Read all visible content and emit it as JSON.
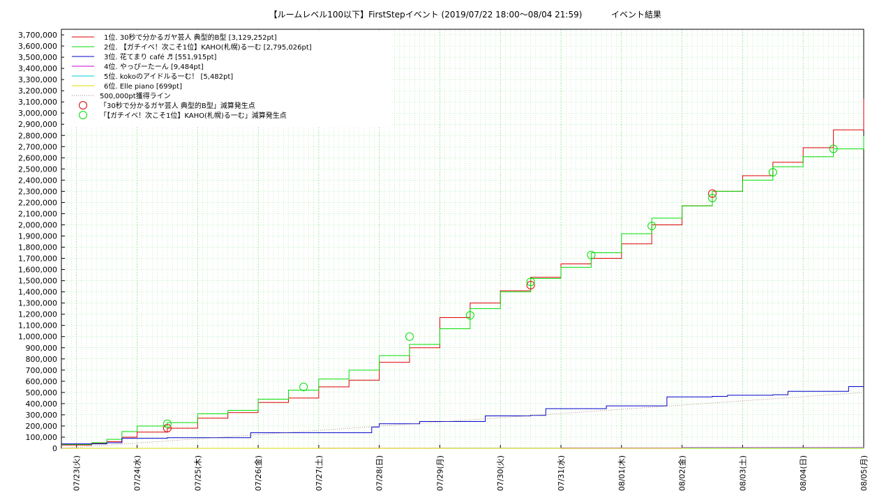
{
  "chart_data": {
    "type": "line",
    "title": "【ルームレベル100以下】FirstStepイベント (2019/07/22 18:00～08/04 21:59)",
    "subtitle": "イベント結果",
    "x_tick_labels": [
      "07/23(火)",
      "07/24(水)",
      "07/25(木)",
      "07/26(金)",
      "07/27(土)",
      "07/28(日)",
      "07/29(月)",
      "07/30(火)",
      "07/31(水)",
      "08/01(木)",
      "08/02(金)",
      "08/03(土)",
      "08/04(日)",
      "08/05(月)"
    ],
    "x_tick_dates": [
      "2019-07-23",
      "2019-07-24",
      "2019-07-25",
      "2019-07-26",
      "2019-07-27",
      "2019-07-28",
      "2019-07-29",
      "2019-07-30",
      "2019-07-31",
      "2019-08-01",
      "2019-08-02",
      "2019-08-03",
      "2019-08-04",
      "2019-08-05"
    ],
    "xlim": [
      "2019-07-22 18:00",
      "2019-08-05 00:00"
    ],
    "ylim": [
      0,
      3750000
    ],
    "y_ticks": [
      0,
      100000,
      200000,
      300000,
      400000,
      500000,
      600000,
      700000,
      800000,
      900000,
      1000000,
      1100000,
      1200000,
      1300000,
      1400000,
      1500000,
      1600000,
      1700000,
      1800000,
      1900000,
      2000000,
      2100000,
      2200000,
      2300000,
      2400000,
      2500000,
      2600000,
      2700000,
      2800000,
      2900000,
      3000000,
      3100000,
      3200000,
      3300000,
      3400000,
      3500000,
      3600000,
      3700000
    ],
    "grid": true,
    "legend_position": "top-left",
    "series": [
      {
        "name": "1位. 30秒で分かるガヤ芸人 典型的B型 [3,129,252pt]",
        "color": "#dd0000",
        "points": [
          [
            "2019-07-22 18:00",
            30000
          ],
          [
            "2019-07-23 06:00",
            45000
          ],
          [
            "2019-07-23 12:00",
            60000
          ],
          [
            "2019-07-23 18:00",
            100000
          ],
          [
            "2019-07-24 00:00",
            145000
          ],
          [
            "2019-07-24 12:00",
            180000
          ],
          [
            "2019-07-25 00:00",
            270000
          ],
          [
            "2019-07-25 12:00",
            320000
          ],
          [
            "2019-07-26 00:00",
            410000
          ],
          [
            "2019-07-26 12:00",
            450000
          ],
          [
            "2019-07-27 00:00",
            550000
          ],
          [
            "2019-07-27 12:00",
            610000
          ],
          [
            "2019-07-28 00:00",
            770000
          ],
          [
            "2019-07-28 12:00",
            900000
          ],
          [
            "2019-07-29 00:00",
            1170000
          ],
          [
            "2019-07-29 12:00",
            1300000
          ],
          [
            "2019-07-30 00:00",
            1410000
          ],
          [
            "2019-07-30 12:00",
            1530000
          ],
          [
            "2019-07-31 00:00",
            1650000
          ],
          [
            "2019-07-31 12:00",
            1700000
          ],
          [
            "2019-08-01 00:00",
            1830000
          ],
          [
            "2019-08-01 12:00",
            2000000
          ],
          [
            "2019-08-02 00:00",
            2170000
          ],
          [
            "2019-08-02 12:00",
            2300000
          ],
          [
            "2019-08-03 00:00",
            2440000
          ],
          [
            "2019-08-03 12:00",
            2560000
          ],
          [
            "2019-08-04 00:00",
            2690000
          ],
          [
            "2019-08-04 12:00",
            2850000
          ],
          [
            "2019-08-05 00:00",
            3129252
          ]
        ]
      },
      {
        "name": "2位. 【ガチイベ！次こそ1位】KAHO(札幌)る一む [2,795,026pt]",
        "color": "#00dd00",
        "points": [
          [
            "2019-07-22 18:00",
            35000
          ],
          [
            "2019-07-23 06:00",
            50000
          ],
          [
            "2019-07-23 12:00",
            80000
          ],
          [
            "2019-07-23 18:00",
            150000
          ],
          [
            "2019-07-24 00:00",
            200000
          ],
          [
            "2019-07-24 12:00",
            230000
          ],
          [
            "2019-07-25 00:00",
            310000
          ],
          [
            "2019-07-25 12:00",
            340000
          ],
          [
            "2019-07-26 00:00",
            440000
          ],
          [
            "2019-07-26 12:00",
            520000
          ],
          [
            "2019-07-27 00:00",
            620000
          ],
          [
            "2019-07-27 12:00",
            700000
          ],
          [
            "2019-07-28 00:00",
            830000
          ],
          [
            "2019-07-28 12:00",
            930000
          ],
          [
            "2019-07-29 00:00",
            1070000
          ],
          [
            "2019-07-29 12:00",
            1250000
          ],
          [
            "2019-07-30 00:00",
            1400000
          ],
          [
            "2019-07-30 12:00",
            1520000
          ],
          [
            "2019-07-31 00:00",
            1620000
          ],
          [
            "2019-07-31 12:00",
            1750000
          ],
          [
            "2019-08-01 00:00",
            1920000
          ],
          [
            "2019-08-01 12:00",
            2060000
          ],
          [
            "2019-08-02 00:00",
            2170000
          ],
          [
            "2019-08-02 12:00",
            2300000
          ],
          [
            "2019-08-03 00:00",
            2400000
          ],
          [
            "2019-08-03 12:00",
            2520000
          ],
          [
            "2019-08-04 00:00",
            2610000
          ],
          [
            "2019-08-04 12:00",
            2680000
          ],
          [
            "2019-08-05 00:00",
            2795026
          ]
        ]
      },
      {
        "name": "3位. 花てまり café ♬ [551,915pt]",
        "color": "#0000cc",
        "points": [
          [
            "2019-07-22 18:00",
            40000
          ],
          [
            "2019-07-23 12:00",
            50000
          ],
          [
            "2019-07-23 18:00",
            90000
          ],
          [
            "2019-07-24 12:00",
            95000
          ],
          [
            "2019-07-25 06:00",
            95000
          ],
          [
            "2019-07-25 18:00",
            95000
          ],
          [
            "2019-07-25 21:00",
            140000
          ],
          [
            "2019-07-26 12:00",
            140000
          ],
          [
            "2019-07-27 00:00",
            140000
          ],
          [
            "2019-07-27 16:00",
            140000
          ],
          [
            "2019-07-27 21:00",
            190000
          ],
          [
            "2019-07-28 00:00",
            220000
          ],
          [
            "2019-07-28 12:00",
            220000
          ],
          [
            "2019-07-28 16:00",
            240000
          ],
          [
            "2019-07-29 08:00",
            240000
          ],
          [
            "2019-07-29 18:00",
            290000
          ],
          [
            "2019-07-30 12:00",
            295000
          ],
          [
            "2019-07-30 18:00",
            355000
          ],
          [
            "2019-07-31 12:00",
            355000
          ],
          [
            "2019-07-31 18:00",
            380000
          ],
          [
            "2019-08-01 12:00",
            380000
          ],
          [
            "2019-08-01 18:00",
            460000
          ],
          [
            "2019-08-02 12:00",
            465000
          ],
          [
            "2019-08-02 18:00",
            475000
          ],
          [
            "2019-08-03 12:00",
            480000
          ],
          [
            "2019-08-03 18:00",
            510000
          ],
          [
            "2019-08-04 12:00",
            510000
          ],
          [
            "2019-08-04 18:00",
            551915
          ],
          [
            "2019-08-05 00:00",
            551915
          ]
        ]
      },
      {
        "name": "4位. やっぴーたーん [9,484pt]",
        "color": "#cc00cc",
        "points": [
          [
            "2019-07-22 18:00",
            0
          ],
          [
            "2019-07-27 00:00",
            1000
          ],
          [
            "2019-07-31 00:00",
            3000
          ],
          [
            "2019-08-02 00:00",
            6000
          ],
          [
            "2019-08-05 00:00",
            9484
          ]
        ]
      },
      {
        "name": "5位. kokoのアイドルる一む！ [5,482pt]",
        "color": "#00cccc",
        "points": [
          [
            "2019-07-22 18:00",
            0
          ],
          [
            "2019-07-29 00:00",
            1000
          ],
          [
            "2019-08-02 00:00",
            3000
          ],
          [
            "2019-08-05 00:00",
            5482
          ]
        ]
      },
      {
        "name": "6位. Elle piano [699pt]",
        "color": "#dddd00",
        "points": [
          [
            "2019-07-22 18:00",
            0
          ],
          [
            "2019-08-05 00:00",
            699
          ]
        ]
      },
      {
        "name": "500,000pt獲得ライン",
        "color": "#aa7777",
        "dashed": true,
        "points": [
          [
            "2019-07-22 18:00",
            0
          ],
          [
            "2019-08-05 00:00",
            500000
          ]
        ]
      }
    ],
    "markers": [
      {
        "name": "「30秒で分かるガヤ芸人 典型的B型」減算発生点",
        "color": "#dd0000",
        "points": [
          [
            "2019-07-24 12:00",
            180000
          ],
          [
            "2019-07-30 12:00",
            1460000
          ],
          [
            "2019-08-02 12:00",
            2280000
          ]
        ]
      },
      {
        "name": "「【ガチイベ！次こそ1位】KAHO(札幌)る一む」減算発生点",
        "color": "#00dd00",
        "points": [
          [
            "2019-07-24 12:00",
            220000
          ],
          [
            "2019-07-26 18:00",
            550000
          ],
          [
            "2019-07-28 12:00",
            1000000
          ],
          [
            "2019-07-29 12:00",
            1190000
          ],
          [
            "2019-07-30 12:00",
            1490000
          ],
          [
            "2019-07-31 12:00",
            1730000
          ],
          [
            "2019-08-01 12:00",
            1990000
          ],
          [
            "2019-08-02 12:00",
            2240000
          ],
          [
            "2019-08-03 12:00",
            2470000
          ],
          [
            "2019-08-04 12:00",
            2680000
          ]
        ]
      }
    ]
  }
}
